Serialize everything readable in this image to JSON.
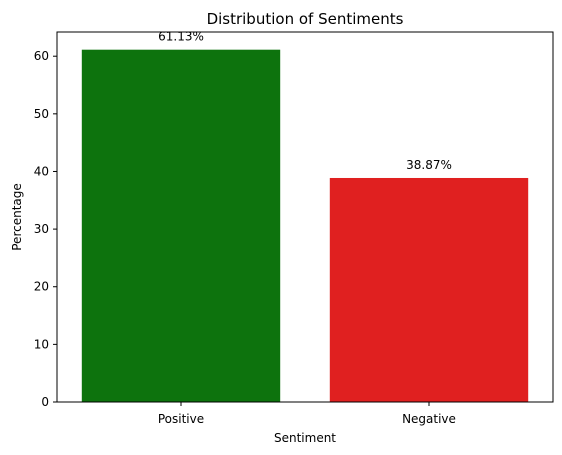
{
  "chart_data": {
    "type": "bar",
    "title": "Distribution of Sentiments",
    "xlabel": "Sentiment",
    "ylabel": "Percentage",
    "categories": [
      "Positive",
      "Negative"
    ],
    "values": [
      61.13,
      38.87
    ],
    "data_labels": [
      "61.13%",
      "38.87%"
    ],
    "colors": [
      "#0d730d",
      "#e02020"
    ],
    "ylim": [
      0,
      64.2
    ],
    "yticks": [
      0,
      10,
      20,
      30,
      40,
      50,
      60
    ],
    "grid": false,
    "legend": "none"
  }
}
